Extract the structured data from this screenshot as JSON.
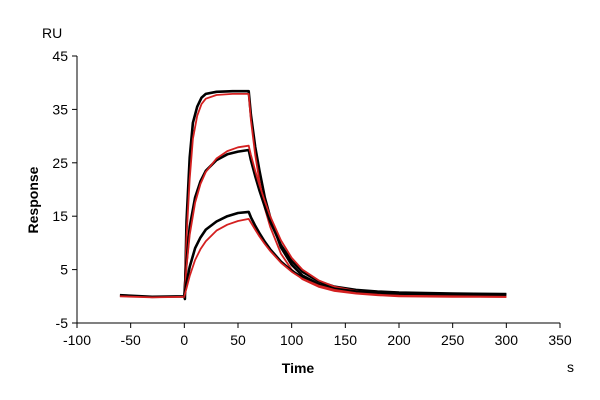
{
  "chart_data": {
    "type": "line",
    "xlabel": "Time",
    "ylabel": "Response",
    "x_unit": "s",
    "y_unit": "RU",
    "xlim": [
      -100,
      350
    ],
    "ylim": [
      -5,
      45
    ],
    "x_ticks": [
      -100,
      -50,
      0,
      50,
      100,
      150,
      200,
      250,
      300,
      350
    ],
    "y_ticks": [
      -5,
      5,
      15,
      25,
      35,
      45
    ],
    "grid": false,
    "series": [
      {
        "color": "#000000",
        "points": [
          [
            -60,
            0.2
          ],
          [
            -30,
            -0.1
          ],
          [
            0,
            0.0
          ],
          [
            0.5,
            -0.5
          ],
          [
            2,
            14.0
          ],
          [
            5,
            26.0
          ],
          [
            8,
            32.5
          ],
          [
            12,
            35.5
          ],
          [
            16,
            37.2
          ],
          [
            20,
            37.9
          ],
          [
            30,
            38.3
          ],
          [
            45,
            38.4
          ],
          [
            60,
            38.4
          ],
          [
            62,
            34.0
          ],
          [
            66,
            28.0
          ],
          [
            70,
            23.5
          ],
          [
            75,
            18.5
          ],
          [
            80,
            14.8
          ],
          [
            90,
            9.2
          ],
          [
            100,
            5.9
          ],
          [
            110,
            3.9
          ],
          [
            125,
            2.3
          ],
          [
            140,
            1.5
          ],
          [
            160,
            1.0
          ],
          [
            180,
            0.8
          ],
          [
            200,
            0.6
          ],
          [
            220,
            0.5
          ],
          [
            250,
            0.4
          ],
          [
            275,
            0.4
          ],
          [
            300,
            0.4
          ]
        ]
      },
      {
        "color": "#d42020",
        "points": [
          [
            -60,
            0.0
          ],
          [
            -30,
            -0.2
          ],
          [
            0,
            -0.1
          ],
          [
            2,
            11.0
          ],
          [
            5,
            22.0
          ],
          [
            8,
            29.5
          ],
          [
            12,
            33.8
          ],
          [
            16,
            36.0
          ],
          [
            20,
            37.0
          ],
          [
            30,
            37.7
          ],
          [
            45,
            37.9
          ],
          [
            60,
            37.9
          ],
          [
            62,
            33.0
          ],
          [
            66,
            26.5
          ],
          [
            70,
            21.5
          ],
          [
            75,
            16.5
          ],
          [
            80,
            13.0
          ],
          [
            90,
            8.0
          ],
          [
            100,
            5.0
          ],
          [
            110,
            3.2
          ],
          [
            125,
            1.8
          ],
          [
            140,
            1.0
          ],
          [
            160,
            0.5
          ],
          [
            180,
            0.2
          ],
          [
            200,
            0.0
          ],
          [
            250,
            -0.1
          ],
          [
            300,
            -0.1
          ]
        ]
      },
      {
        "color": "#000000",
        "points": [
          [
            0,
            0.0
          ],
          [
            2,
            6.5
          ],
          [
            5,
            13.0
          ],
          [
            10,
            18.5
          ],
          [
            15,
            21.5
          ],
          [
            20,
            23.5
          ],
          [
            30,
            25.5
          ],
          [
            40,
            26.6
          ],
          [
            50,
            27.1
          ],
          [
            60,
            27.4
          ],
          [
            62,
            25.5
          ],
          [
            66,
            22.5
          ],
          [
            70,
            19.8
          ],
          [
            75,
            16.8
          ],
          [
            80,
            14.0
          ],
          [
            90,
            9.6
          ],
          [
            100,
            6.6
          ],
          [
            110,
            4.6
          ],
          [
            125,
            2.8
          ],
          [
            140,
            1.8
          ],
          [
            160,
            1.2
          ],
          [
            180,
            0.9
          ],
          [
            200,
            0.7
          ],
          [
            250,
            0.5
          ],
          [
            300,
            0.4
          ]
        ]
      },
      {
        "color": "#d42020",
        "points": [
          [
            0,
            0.0
          ],
          [
            2,
            5.5
          ],
          [
            5,
            11.5
          ],
          [
            10,
            17.5
          ],
          [
            15,
            21.0
          ],
          [
            20,
            23.3
          ],
          [
            30,
            25.8
          ],
          [
            40,
            27.2
          ],
          [
            50,
            27.9
          ],
          [
            60,
            28.2
          ],
          [
            62,
            26.5
          ],
          [
            66,
            23.5
          ],
          [
            70,
            20.8
          ],
          [
            75,
            17.8
          ],
          [
            80,
            15.0
          ],
          [
            90,
            10.5
          ],
          [
            100,
            7.2
          ],
          [
            110,
            5.0
          ],
          [
            125,
            3.0
          ],
          [
            140,
            1.8
          ],
          [
            160,
            1.0
          ],
          [
            180,
            0.5
          ],
          [
            200,
            0.2
          ],
          [
            250,
            0.0
          ],
          [
            300,
            -0.1
          ]
        ]
      },
      {
        "color": "#000000",
        "points": [
          [
            0,
            0.0
          ],
          [
            2,
            2.5
          ],
          [
            5,
            5.5
          ],
          [
            10,
            9.0
          ],
          [
            15,
            11.0
          ],
          [
            20,
            12.5
          ],
          [
            30,
            14.0
          ],
          [
            40,
            15.0
          ],
          [
            50,
            15.6
          ],
          [
            60,
            15.8
          ],
          [
            62,
            14.8
          ],
          [
            66,
            13.2
          ],
          [
            70,
            11.8
          ],
          [
            75,
            10.2
          ],
          [
            80,
            8.8
          ],
          [
            90,
            6.5
          ],
          [
            100,
            4.8
          ],
          [
            110,
            3.5
          ],
          [
            125,
            2.2
          ],
          [
            140,
            1.4
          ],
          [
            160,
            0.9
          ],
          [
            180,
            0.6
          ],
          [
            200,
            0.5
          ],
          [
            250,
            0.3
          ],
          [
            300,
            0.3
          ]
        ]
      },
      {
        "color": "#d42020",
        "points": [
          [
            0,
            0.0
          ],
          [
            2,
            1.5
          ],
          [
            5,
            3.8
          ],
          [
            10,
            6.8
          ],
          [
            15,
            8.8
          ],
          [
            20,
            10.3
          ],
          [
            30,
            12.3
          ],
          [
            40,
            13.4
          ],
          [
            50,
            14.1
          ],
          [
            60,
            14.5
          ],
          [
            62,
            13.8
          ],
          [
            66,
            12.5
          ],
          [
            70,
            11.2
          ],
          [
            75,
            9.8
          ],
          [
            80,
            8.5
          ],
          [
            90,
            6.3
          ],
          [
            100,
            4.6
          ],
          [
            110,
            3.3
          ],
          [
            125,
            2.0
          ],
          [
            140,
            1.2
          ],
          [
            160,
            0.6
          ],
          [
            180,
            0.3
          ],
          [
            200,
            0.1
          ],
          [
            250,
            0.0
          ],
          [
            300,
            -0.1
          ]
        ]
      }
    ]
  }
}
